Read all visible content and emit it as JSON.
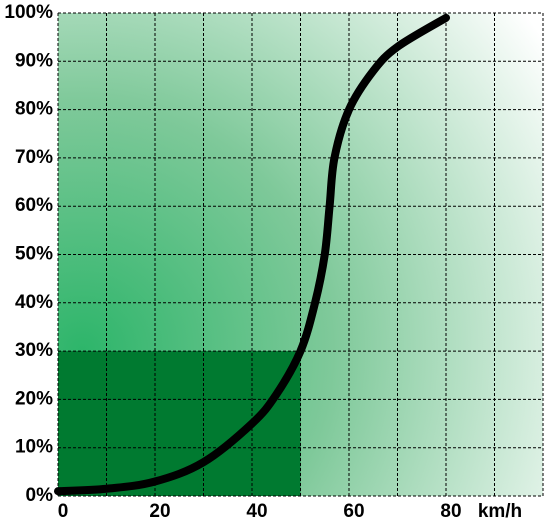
{
  "chart_data": {
    "type": "line",
    "x_unit": "km/h",
    "x": [
      0,
      10,
      20,
      30,
      40,
      45,
      50,
      53,
      55,
      56,
      57,
      60,
      65,
      70,
      80
    ],
    "series": [
      {
        "color": "#000000",
        "values": [
          1,
          1.5,
          3,
          7,
          15,
          21,
          30,
          40,
          50,
          60,
          70,
          80,
          88,
          93,
          99
        ]
      }
    ],
    "highlight": {
      "x": [
        0,
        50
      ],
      "y": [
        0,
        30
      ],
      "color": "#007a30"
    },
    "xlim": [
      0,
      100
    ],
    "ylim": [
      0,
      100
    ],
    "xticks": [
      0,
      20,
      40,
      60,
      80
    ],
    "xgrid": [
      0,
      10,
      20,
      30,
      40,
      50,
      60,
      70,
      80,
      90,
      100
    ],
    "yticks": [
      {
        "value": 0,
        "label": "0%"
      },
      {
        "value": 10,
        "label": "10%"
      },
      {
        "value": 20,
        "label": "20%"
      },
      {
        "value": 30,
        "label": "30%"
      },
      {
        "value": 40,
        "label": "40%"
      },
      {
        "value": 50,
        "label": "50%"
      },
      {
        "value": 60,
        "label": "60%"
      },
      {
        "value": 70,
        "label": "70%"
      },
      {
        "value": 80,
        "label": "80%"
      },
      {
        "value": 90,
        "label": "90%"
      },
      {
        "value": 100,
        "label": "100%"
      }
    ],
    "grid": true
  }
}
